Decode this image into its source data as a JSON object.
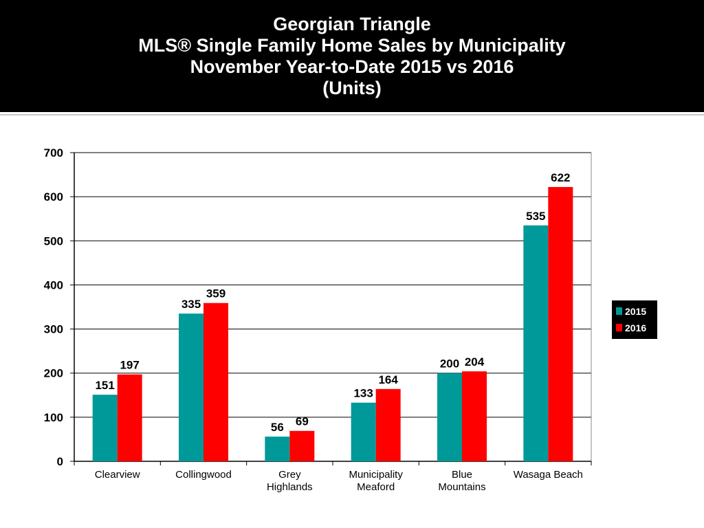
{
  "title_lines": [
    "Georgian Triangle",
    "MLS®  Single Family Home Sales by Municipality",
    "November Year-to-Date 2015 vs 2016",
    "(Units)"
  ],
  "chart_data": {
    "type": "bar",
    "categories": [
      [
        "Clearview"
      ],
      [
        "Collingwood"
      ],
      [
        "Grey",
        "Highlands"
      ],
      [
        "Municipality",
        "Meaford"
      ],
      [
        "Blue",
        "Mountains"
      ],
      [
        "Wasaga Beach"
      ]
    ],
    "series": [
      {
        "name": "2015",
        "color": "#009999",
        "values": [
          151,
          335,
          56,
          133,
          200,
          535
        ]
      },
      {
        "name": "2016",
        "color": "#ff0000",
        "values": [
          197,
          359,
          69,
          164,
          204,
          622
        ]
      }
    ],
    "ylim": [
      0,
      700
    ],
    "yticks": [
      0,
      100,
      200,
      300,
      400,
      500,
      600,
      700
    ],
    "grid": true,
    "legend_position": "right",
    "legend_background": "#000000",
    "title": "",
    "xlabel": "",
    "ylabel": ""
  }
}
